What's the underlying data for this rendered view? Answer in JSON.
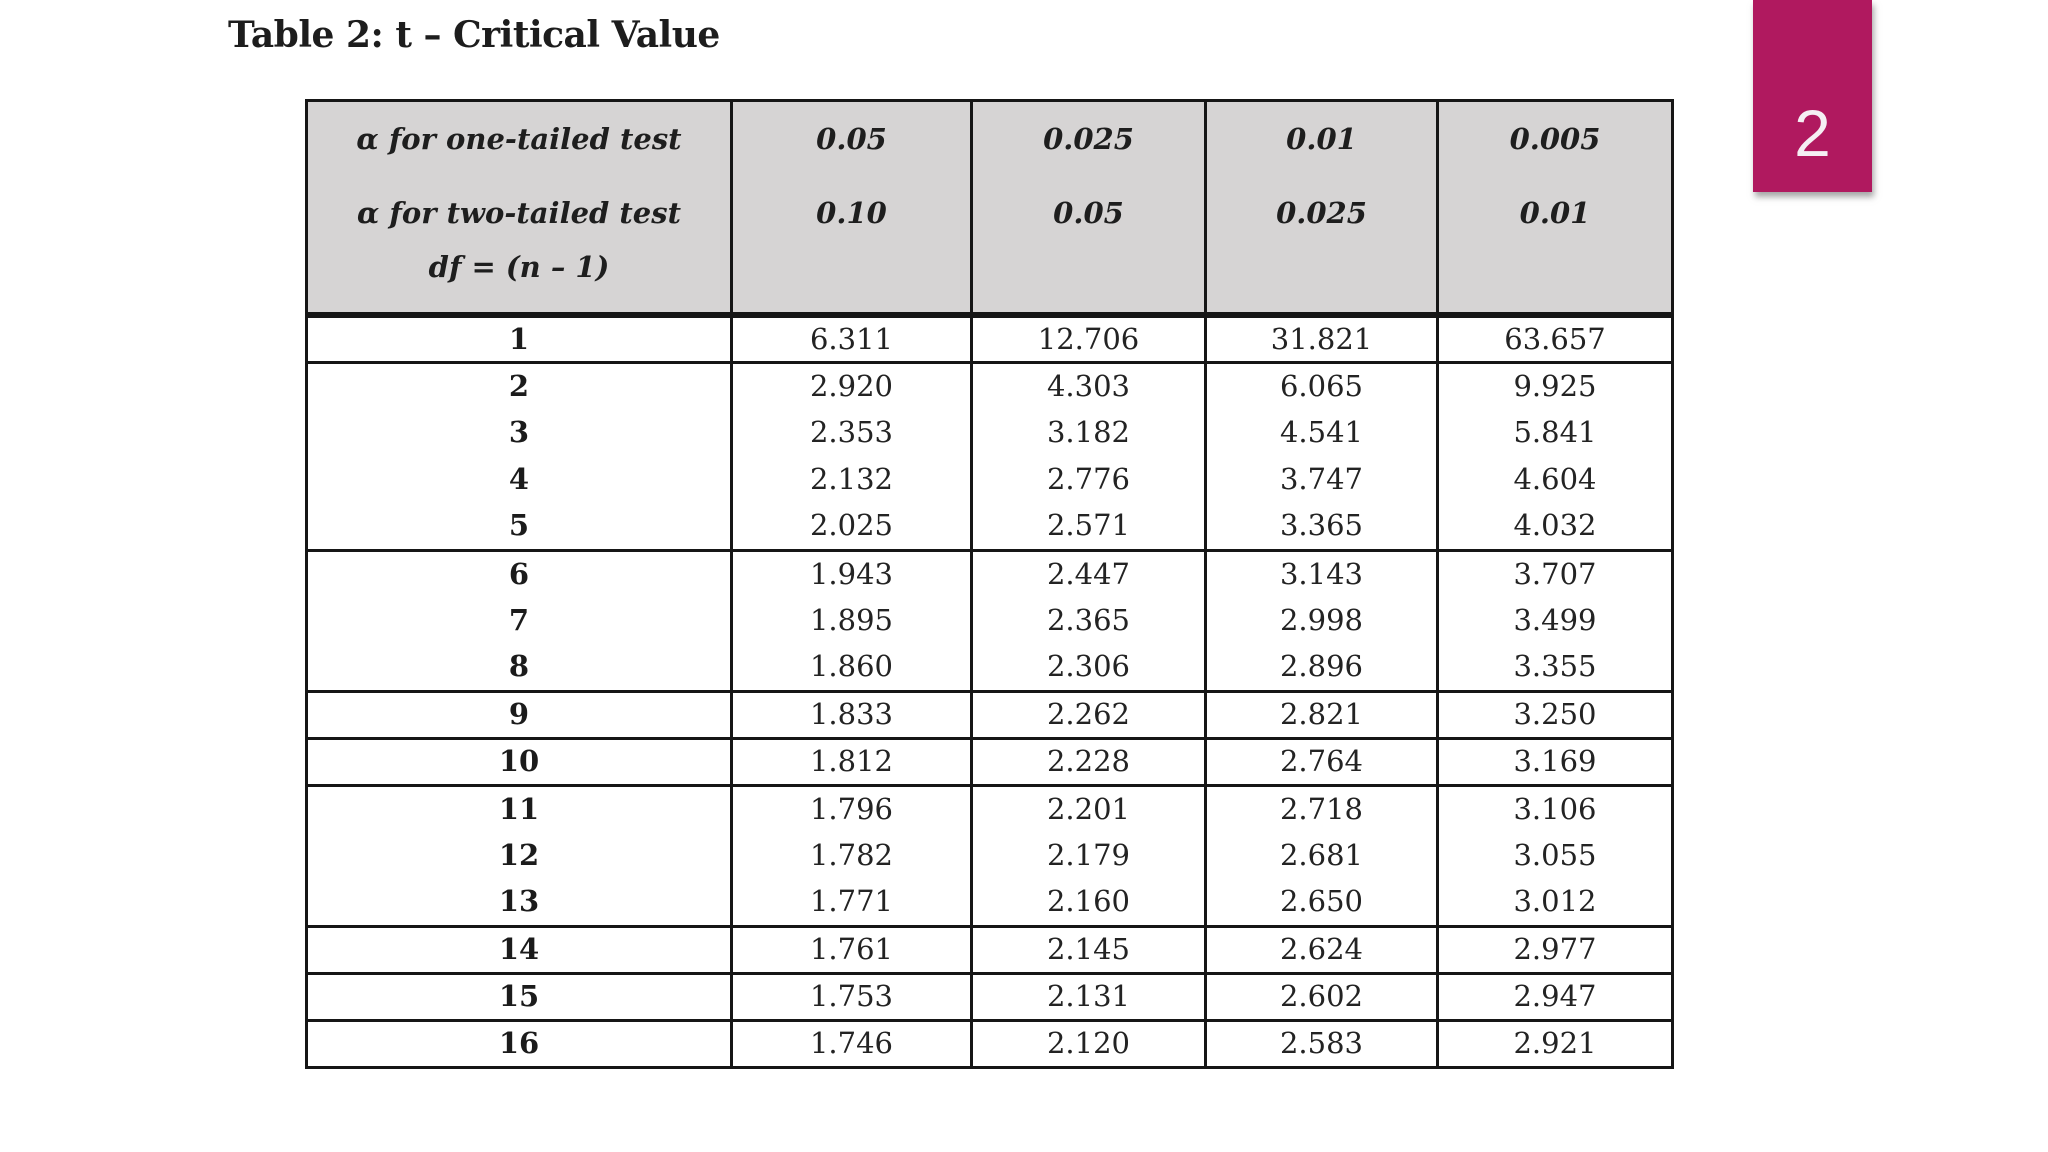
{
  "title": "Table 2: t – Critical Value",
  "badge": {
    "page_number": "2",
    "color": "#b0195f"
  },
  "colors": {
    "header_bg": "#d6d4d4",
    "border": "#161616",
    "badge": "#b0195f",
    "page_bg": "#ffffff"
  },
  "table": {
    "header": {
      "row1_label": "α for one-tailed test",
      "row2_label": "α for two-tailed test",
      "row3_label": "df = (n – 1)",
      "one_tailed_values": [
        "0.05",
        "0.025",
        "0.01",
        "0.005"
      ],
      "two_tailed_values": [
        "0.10",
        "0.05",
        "0.025",
        "0.01"
      ]
    },
    "group_start_df": [
      2,
      6,
      9,
      10,
      11,
      14,
      15,
      16
    ],
    "rows": [
      {
        "df": "1",
        "values": [
          "6.311",
          "12.706",
          "31.821",
          "63.657"
        ]
      },
      {
        "df": "2",
        "values": [
          "2.920",
          "4.303",
          "6.065",
          "9.925"
        ]
      },
      {
        "df": "3",
        "values": [
          "2.353",
          "3.182",
          "4.541",
          "5.841"
        ]
      },
      {
        "df": "4",
        "values": [
          "2.132",
          "2.776",
          "3.747",
          "4.604"
        ]
      },
      {
        "df": "5",
        "values": [
          "2.025",
          "2.571",
          "3.365",
          "4.032"
        ]
      },
      {
        "df": "6",
        "values": [
          "1.943",
          "2.447",
          "3.143",
          "3.707"
        ]
      },
      {
        "df": "7",
        "values": [
          "1.895",
          "2.365",
          "2.998",
          "3.499"
        ]
      },
      {
        "df": "8",
        "values": [
          "1.860",
          "2.306",
          "2.896",
          "3.355"
        ]
      },
      {
        "df": "9",
        "values": [
          "1.833",
          "2.262",
          "2.821",
          "3.250"
        ]
      },
      {
        "df": "10",
        "values": [
          "1.812",
          "2.228",
          "2.764",
          "3.169"
        ]
      },
      {
        "df": "11",
        "values": [
          "1.796",
          "2.201",
          "2.718",
          "3.106"
        ]
      },
      {
        "df": "12",
        "values": [
          "1.782",
          "2.179",
          "2.681",
          "3.055"
        ]
      },
      {
        "df": "13",
        "values": [
          "1.771",
          "2.160",
          "2.650",
          "3.012"
        ]
      },
      {
        "df": "14",
        "values": [
          "1.761",
          "2.145",
          "2.624",
          "2.977"
        ]
      },
      {
        "df": "15",
        "values": [
          "1.753",
          "2.131",
          "2.602",
          "2.947"
        ]
      },
      {
        "df": "16",
        "values": [
          "1.746",
          "2.120",
          "2.583",
          "2.921"
        ]
      }
    ]
  }
}
